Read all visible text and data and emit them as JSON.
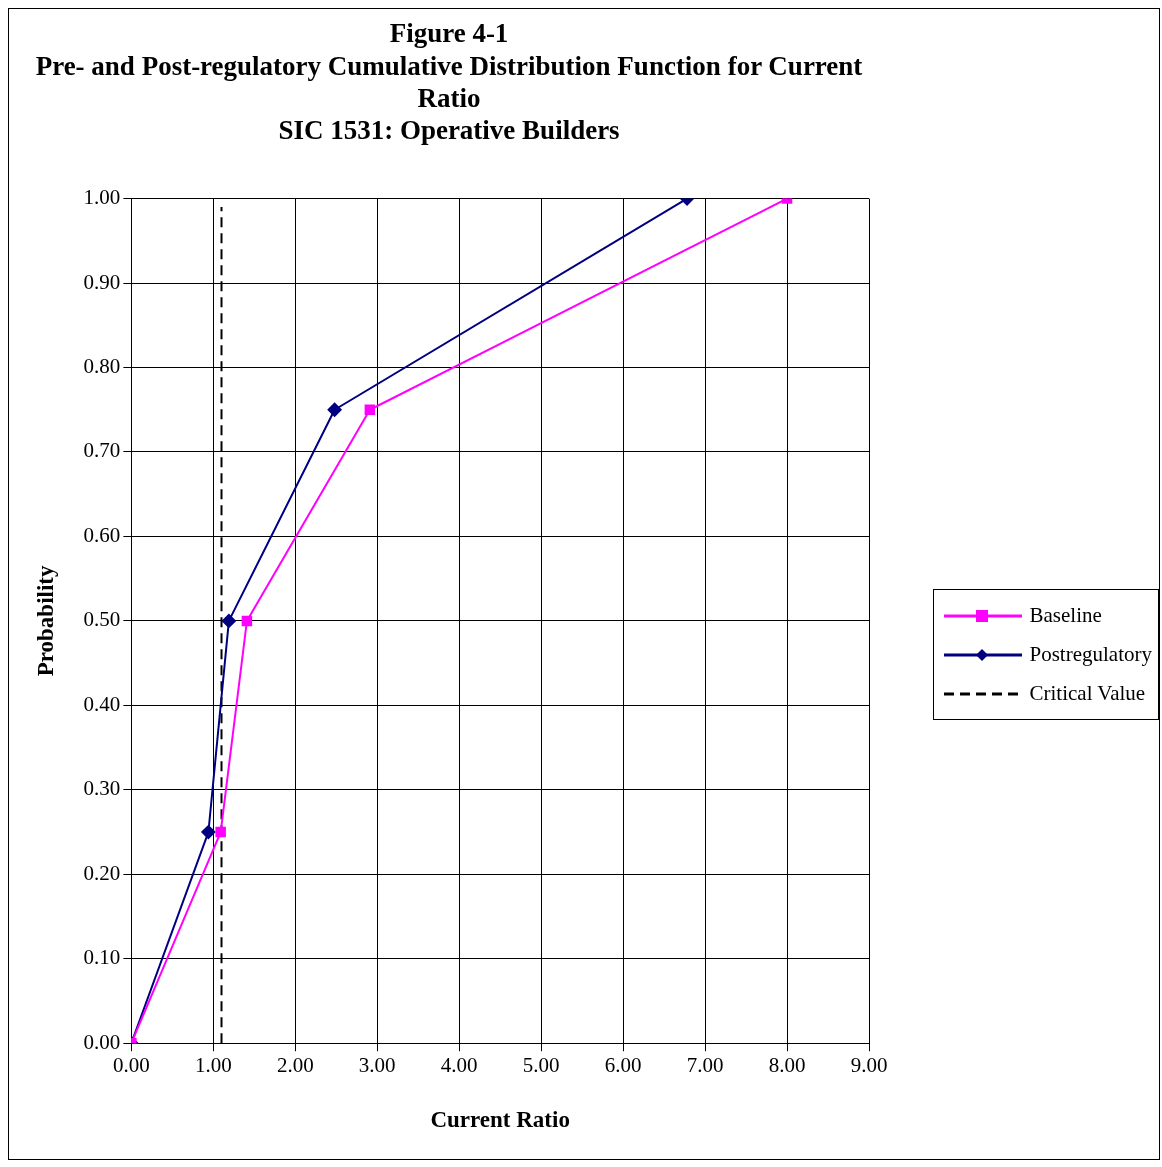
{
  "chart_data": {
    "type": "line",
    "title": [
      "Figure 4-1",
      "Pre- and Post-regulatory Cumulative Distribution Function for Current",
      "Ratio",
      "SIC 1531: Operative Builders"
    ],
    "xlabel": "Current Ratio",
    "ylabel": "Probability",
    "series": [
      {
        "name": "Baseline",
        "color": "#ff00ff",
        "marker": "square",
        "x": [
          0,
          1.09,
          1.41,
          2.91,
          8.0
        ],
        "values": [
          0,
          0.25,
          0.5,
          0.75,
          1.0
        ]
      },
      {
        "name": "Postregulatory",
        "color": "#000080",
        "marker": "diamond",
        "x": [
          0,
          0.94,
          1.19,
          2.48,
          6.78
        ],
        "values": [
          0,
          0.25,
          0.5,
          0.75,
          1.0
        ]
      },
      {
        "name": "Critical Value",
        "color": "#000000",
        "marker": "none",
        "line_style": "dashed",
        "x": [
          1.1,
          1.1
        ],
        "values": [
          0,
          0.99
        ]
      }
    ],
    "xlim": [
      0,
      9
    ],
    "xticks": [
      {
        "value": 0,
        "label": "0.00"
      },
      {
        "value": 1,
        "label": "1.00"
      },
      {
        "value": 2,
        "label": "2.00"
      },
      {
        "value": 3,
        "label": "3.00"
      },
      {
        "value": 4,
        "label": "4.00"
      },
      {
        "value": 5,
        "label": "5.00"
      },
      {
        "value": 6,
        "label": "6.00"
      },
      {
        "value": 7,
        "label": "7.00"
      },
      {
        "value": 8,
        "label": "8.00"
      },
      {
        "value": 9,
        "label": "9.00"
      }
    ],
    "ylim": [
      0,
      1
    ],
    "yticks": [
      {
        "value": 0,
        "label": "0.00"
      },
      {
        "value": 0.1,
        "label": "0.10"
      },
      {
        "value": 0.2,
        "label": "0.20"
      },
      {
        "value": 0.3,
        "label": "0.30"
      },
      {
        "value": 0.4,
        "label": "0.40"
      },
      {
        "value": 0.5,
        "label": "0.50"
      },
      {
        "value": 0.6,
        "label": "0.60"
      },
      {
        "value": 0.7,
        "label": "0.70"
      },
      {
        "value": 0.8,
        "label": "0.80"
      },
      {
        "value": 0.9,
        "label": "0.90"
      },
      {
        "value": 1,
        "label": "1.00"
      }
    ],
    "grid": true,
    "legend": "right"
  }
}
